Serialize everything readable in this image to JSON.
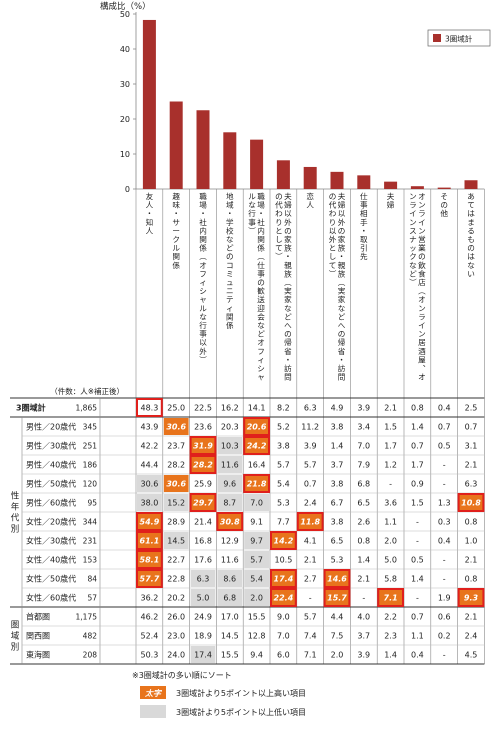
{
  "chart_data": {
    "type": "bar",
    "ylabel": "構成比（%）",
    "ylim": [
      0,
      50
    ],
    "yticks": [
      0,
      10,
      20,
      30,
      40,
      50
    ],
    "legend": {
      "label": "3圏域計",
      "placement": "top-right"
    },
    "categories": [
      "友人・知人",
      "趣味・サークル関係",
      "職場・社内関係（オフィシャルな行事以外）",
      "地域・学校などのコミュニティ関係",
      "職場・社内関係（仕事の歓送迎会などオフィシャルな行事）",
      "夫婦以外の家族・親族（実家などへの帰省・訪問の代わりとして）",
      "恋人",
      "夫婦以外の家族・親族（実家などへの帰省・訪問の代わり以外として）",
      "仕事相手・取引先",
      "夫婦",
      "オンライン営業の飲食店（オンライン居酒屋、オンラインスナックなど）",
      "その他",
      "あてはまるものはない"
    ],
    "series": [
      {
        "name": "3圏域計",
        "values": [
          48.3,
          25.0,
          22.5,
          16.2,
          14.1,
          8.2,
          6.3,
          4.9,
          3.9,
          2.1,
          0.8,
          0.4,
          2.5
        ]
      }
    ],
    "color": "#a8302c"
  },
  "table": {
    "header_note": "（件数：人※補正後）",
    "group_labels": [
      {
        "text": "性年代別",
        "row_start": 1,
        "row_end": 10
      },
      {
        "text": "圏域別",
        "row_start": 11,
        "row_end": 13
      }
    ],
    "rows": [
      {
        "label": "3圏域計",
        "n": "1,865",
        "values": [
          "48.3",
          "25.0",
          "22.5",
          "16.2",
          "14.1",
          "8.2",
          "6.3",
          "4.9",
          "3.9",
          "2.1",
          "0.8",
          "0.4",
          "2.5"
        ]
      },
      {
        "label": "男性／20歳代",
        "n": "345",
        "values": [
          "43.9",
          "30.6",
          "23.6",
          "20.3",
          "20.6",
          "5.2",
          "11.2",
          "3.8",
          "3.4",
          "1.5",
          "1.4",
          "0.7",
          "0.7"
        ]
      },
      {
        "label": "男性／30歳代",
        "n": "251",
        "values": [
          "42.2",
          "23.7",
          "31.9",
          "10.3",
          "24.2",
          "3.8",
          "3.9",
          "1.4",
          "7.0",
          "1.7",
          "0.7",
          "0.5",
          "3.1"
        ]
      },
      {
        "label": "男性／40歳代",
        "n": "186",
        "values": [
          "44.4",
          "28.2",
          "28.2",
          "11.6",
          "16.4",
          "5.7",
          "5.7",
          "3.7",
          "7.9",
          "1.2",
          "1.7",
          "-",
          "2.1"
        ]
      },
      {
        "label": "男性／50歳代",
        "n": "120",
        "values": [
          "30.6",
          "30.6",
          "25.9",
          "9.6",
          "21.8",
          "5.4",
          "0.7",
          "3.8",
          "6.8",
          "-",
          "0.9",
          "-",
          "6.3"
        ]
      },
      {
        "label": "男性／60歳代",
        "n": "95",
        "values": [
          "38.0",
          "15.2",
          "29.7",
          "8.7",
          "7.0",
          "5.3",
          "2.4",
          "6.7",
          "6.5",
          "3.6",
          "1.5",
          "1.3",
          "10.8"
        ]
      },
      {
        "label": "女性／20歳代",
        "n": "344",
        "values": [
          "54.9",
          "28.9",
          "21.4",
          "30.8",
          "9.1",
          "7.7",
          "11.8",
          "3.8",
          "2.6",
          "1.1",
          "-",
          "0.3",
          "0.8"
        ]
      },
      {
        "label": "女性／30歳代",
        "n": "231",
        "values": [
          "61.1",
          "14.5",
          "16.8",
          "12.9",
          "9.7",
          "14.2",
          "4.1",
          "6.5",
          "0.8",
          "2.0",
          "-",
          "0.4",
          "1.0"
        ]
      },
      {
        "label": "女性／40歳代",
        "n": "153",
        "values": [
          "58.1",
          "22.7",
          "17.6",
          "11.6",
          "5.7",
          "10.5",
          "2.1",
          "5.3",
          "1.4",
          "5.0",
          "0.5",
          "-",
          "2.1"
        ]
      },
      {
        "label": "女性／50歳代",
        "n": "84",
        "values": [
          "57.7",
          "22.8",
          "6.3",
          "8.6",
          "5.4",
          "17.4",
          "2.7",
          "14.6",
          "2.1",
          "5.8",
          "1.4",
          "-",
          "0.8"
        ]
      },
      {
        "label": "女性／60歳代",
        "n": "57",
        "values": [
          "36.2",
          "20.2",
          "5.0",
          "6.8",
          "2.0",
          "22.4",
          "-",
          "15.7",
          "-",
          "7.1",
          "-",
          "1.9",
          "9.3"
        ]
      },
      {
        "label": "首都圏",
        "n": "1,175",
        "values": [
          "46.2",
          "26.0",
          "24.9",
          "17.0",
          "15.5",
          "9.0",
          "5.7",
          "4.4",
          "4.0",
          "2.2",
          "0.7",
          "0.6",
          "2.1"
        ]
      },
      {
        "label": "関西圏",
        "n": "482",
        "values": [
          "52.4",
          "23.0",
          "18.9",
          "14.5",
          "12.8",
          "7.0",
          "7.4",
          "7.5",
          "3.7",
          "2.3",
          "1.1",
          "0.2",
          "2.4"
        ]
      },
      {
        "label": "東海圏",
        "n": "208",
        "values": [
          "50.3",
          "24.0",
          "17.4",
          "15.5",
          "9.4",
          "6.0",
          "7.1",
          "2.0",
          "3.9",
          "1.4",
          "0.4",
          "-",
          "4.5"
        ]
      }
    ],
    "high_cells": [
      [
        1,
        1
      ],
      [
        1,
        4
      ],
      [
        2,
        2
      ],
      [
        2,
        4
      ],
      [
        3,
        2
      ],
      [
        4,
        1
      ],
      [
        4,
        4
      ],
      [
        5,
        2
      ],
      [
        5,
        12
      ],
      [
        6,
        0
      ],
      [
        6,
        3
      ],
      [
        6,
        6
      ],
      [
        7,
        0
      ],
      [
        7,
        5
      ],
      [
        8,
        0
      ],
      [
        9,
        0
      ],
      [
        9,
        5
      ],
      [
        9,
        7
      ],
      [
        10,
        5
      ],
      [
        10,
        7
      ],
      [
        10,
        9
      ],
      [
        10,
        12
      ]
    ],
    "low_cells": [
      [
        2,
        3
      ],
      [
        3,
        3
      ],
      [
        4,
        0
      ],
      [
        4,
        3
      ],
      [
        5,
        0
      ],
      [
        5,
        1
      ],
      [
        5,
        3
      ],
      [
        5,
        4
      ],
      [
        7,
        1
      ],
      [
        7,
        4
      ],
      [
        8,
        4
      ],
      [
        9,
        2
      ],
      [
        9,
        3
      ],
      [
        9,
        4
      ],
      [
        10,
        2
      ],
      [
        10,
        3
      ],
      [
        10,
        4
      ],
      [
        13,
        2
      ]
    ],
    "box_cells": [
      [
        0,
        0
      ],
      [
        1,
        4
      ],
      [
        2,
        2
      ],
      [
        2,
        4
      ],
      [
        3,
        2
      ],
      [
        4,
        4
      ],
      [
        5,
        2
      ],
      [
        5,
        12
      ],
      [
        6,
        0
      ],
      [
        6,
        3
      ],
      [
        6,
        6
      ],
      [
        7,
        0
      ],
      [
        7,
        5
      ],
      [
        8,
        0
      ],
      [
        9,
        0
      ],
      [
        9,
        5
      ],
      [
        9,
        7
      ],
      [
        10,
        5
      ],
      [
        10,
        7
      ],
      [
        10,
        9
      ],
      [
        10,
        12
      ]
    ]
  },
  "notes": {
    "sort_note": "※3圏域計の多い順にソート",
    "high_sample": "太字",
    "high_label": "3圏域計より5ポイント以上高い項目",
    "low_label": "3圏域計より5ポイント以上低い項目"
  },
  "colors": {
    "bar": "#a8302c",
    "highlight": "#e8741c",
    "low": "#d9d9d9",
    "box": "#e0201c",
    "grid": "#888888"
  }
}
